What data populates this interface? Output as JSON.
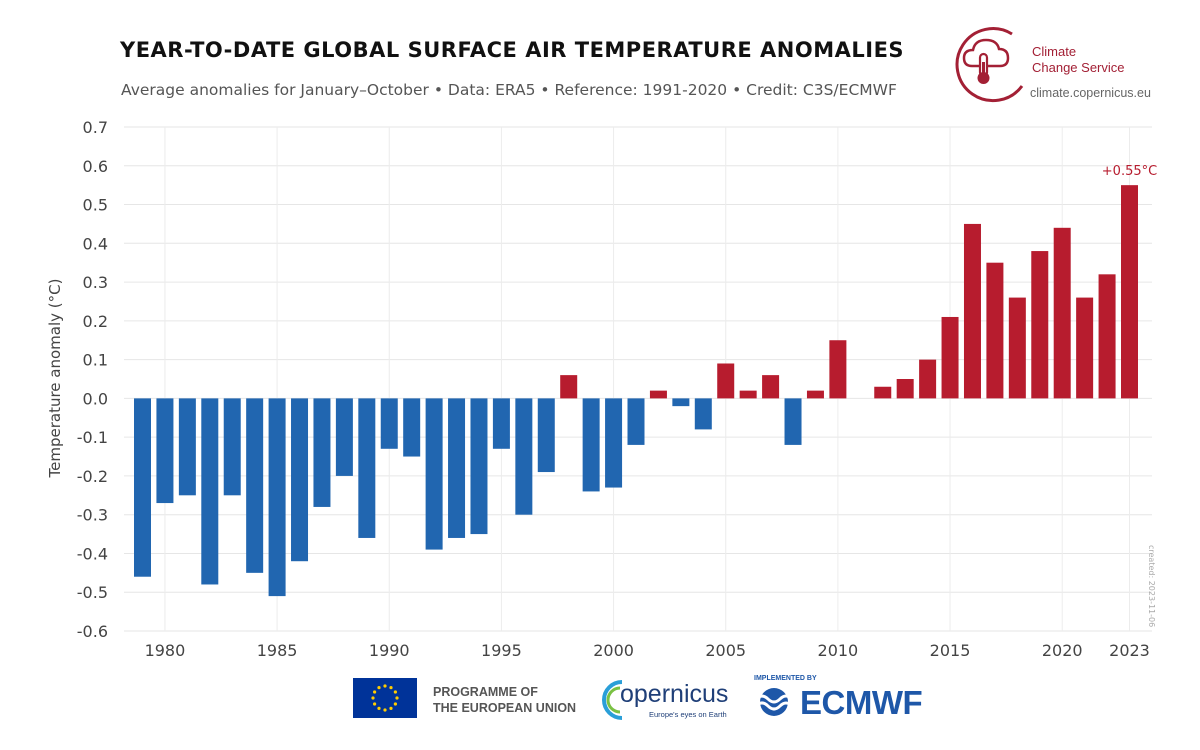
{
  "header": {
    "title": "YEAR-TO-DATE GLOBAL SURFACE AIR TEMPERATURE ANOMALIES",
    "subtitle": "Average anomalies for January–October • Data: ERA5 • Reference: 1991-2020 • Credit: C3S/ECMWF"
  },
  "logo": {
    "name_line1": "Climate",
    "name_line2": "Change Service",
    "url": "climate.copernicus.eu",
    "color": "#a32035"
  },
  "created_note": "created: 2023-11-06",
  "footer": {
    "eu_line1": "PROGRAMME OF",
    "eu_line2": "THE EUROPEAN UNION",
    "copernicus": "opernicus",
    "copernicus_tagline": "Europe's eyes on Earth",
    "ecmwf_implemented": "IMPLEMENTED BY",
    "ecmwf": "ECMWF"
  },
  "chart_data": {
    "type": "bar",
    "title": "YEAR-TO-DATE GLOBAL SURFACE AIR TEMPERATURE ANOMALIES",
    "ylabel": "Temperature anomaly (°C)",
    "xlabel": "",
    "ylim": [
      -0.6,
      0.7
    ],
    "yticks": [
      "0.7",
      "0.6",
      "0.5",
      "0.4",
      "0.3",
      "0.2",
      "0.1",
      "0.0",
      "-0.1",
      "-0.2",
      "-0.3",
      "-0.4",
      "-0.5",
      "-0.6"
    ],
    "xticks": [
      "1980",
      "1985",
      "1990",
      "1995",
      "2000",
      "2005",
      "2010",
      "2015",
      "2020",
      "2023"
    ],
    "grid": true,
    "positive_color": "#b71c2e",
    "negative_color": "#2166b0",
    "categories": [
      1979,
      1980,
      1981,
      1982,
      1983,
      1984,
      1985,
      1986,
      1987,
      1988,
      1989,
      1990,
      1991,
      1992,
      1993,
      1994,
      1995,
      1996,
      1997,
      1998,
      1999,
      2000,
      2001,
      2002,
      2003,
      2004,
      2005,
      2006,
      2007,
      2008,
      2009,
      2010,
      2011,
      2012,
      2013,
      2014,
      2015,
      2016,
      2017,
      2018,
      2019,
      2020,
      2021,
      2022,
      2023
    ],
    "values": [
      -0.46,
      -0.27,
      -0.25,
      -0.48,
      -0.25,
      -0.45,
      -0.51,
      -0.42,
      -0.28,
      -0.2,
      -0.36,
      -0.13,
      -0.15,
      -0.39,
      -0.36,
      -0.35,
      -0.13,
      -0.3,
      -0.19,
      0.06,
      -0.24,
      -0.23,
      -0.12,
      0.02,
      -0.02,
      -0.08,
      0.09,
      0.02,
      0.06,
      -0.12,
      0.02,
      0.15,
      0.0,
      0.03,
      0.05,
      0.1,
      0.21,
      0.45,
      0.35,
      0.26,
      0.38,
      0.44,
      0.26,
      0.32,
      0.55
    ],
    "annotation": "+0.55°C"
  }
}
